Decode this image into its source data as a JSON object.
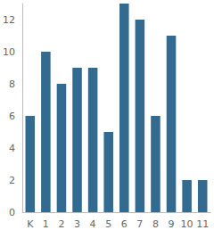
{
  "chart_data": {
    "type": "bar",
    "categories": [
      "K",
      "1",
      "2",
      "3",
      "4",
      "5",
      "6",
      "7",
      "8",
      "9",
      "10",
      "11"
    ],
    "values": [
      6,
      10,
      8,
      9,
      9,
      5,
      13,
      12,
      6,
      11,
      2,
      2
    ],
    "color": "#336a90",
    "ylim": [
      0,
      13
    ],
    "yticks": [
      0,
      2,
      4,
      6,
      8,
      10,
      12
    ],
    "grid": false
  }
}
